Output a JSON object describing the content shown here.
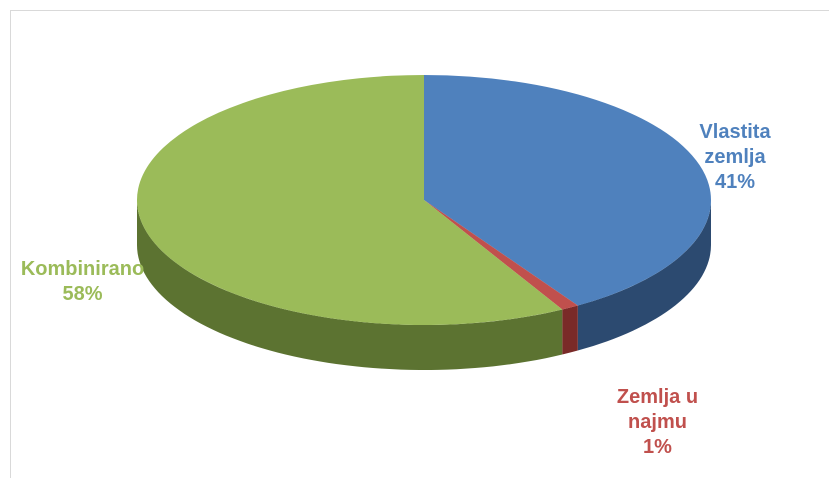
{
  "chart_data": {
    "type": "pie",
    "categories": [
      "Vlastita zemlja",
      "Zemlja u najmu",
      "Kombinirano"
    ],
    "values": [
      41,
      1,
      58
    ],
    "value_labels": [
      "41%",
      "1%",
      "58%"
    ],
    "colors": [
      "#4f81bd",
      "#c0504d",
      "#9bbb59"
    ],
    "side_colors": [
      "#2c4a70",
      "#7a2a28",
      "#5c7331"
    ]
  }
}
